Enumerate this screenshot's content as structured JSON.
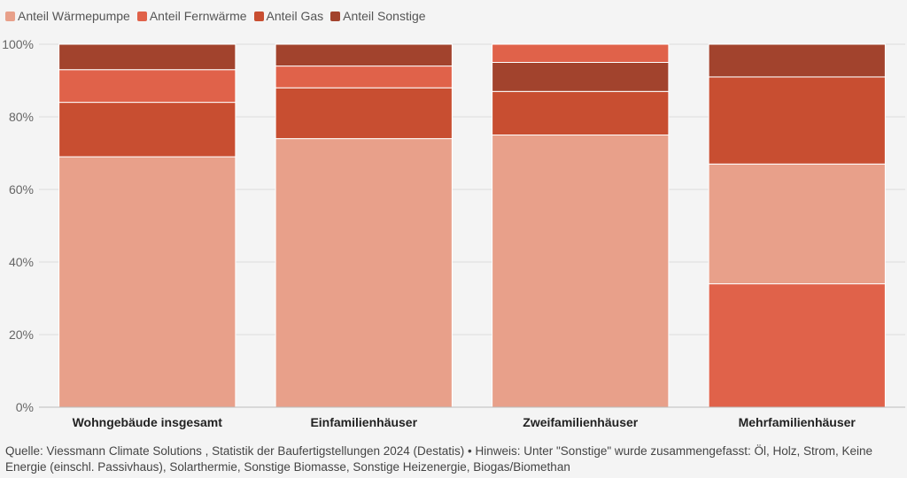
{
  "legend": [
    {
      "label": "Anteil Wärmepumpe",
      "color": "#e8a08a"
    },
    {
      "label": "Anteil Fernwärme",
      "color": "#e0624a"
    },
    {
      "label": "Anteil Gas",
      "color": "#c84e31"
    },
    {
      "label": "Anteil Sonstige",
      "color": "#a2432d"
    }
  ],
  "chart_data": {
    "type": "bar",
    "stacked": true,
    "categories": [
      "Wohngebäude insgesamt",
      "Einfamilienhäuser",
      "Zweifamilienhäuser",
      "Mehrfamilienhäuser"
    ],
    "series": [
      {
        "name": "Anteil Wärmepumpe",
        "color": "#e8a08a",
        "values": [
          69,
          74,
          75,
          33
        ]
      },
      {
        "name": "Anteil Fernwärme",
        "color": "#e0624a",
        "values": [
          9,
          6,
          5,
          34
        ]
      },
      {
        "name": "Anteil Gas",
        "color": "#c84e31",
        "values": [
          15,
          14,
          12,
          24
        ]
      },
      {
        "name": "Anteil Sonstige",
        "color": "#a2432d",
        "values": [
          7,
          6,
          8,
          9
        ]
      }
    ],
    "stack_order": [
      [
        "Anteil Wärmepumpe",
        "Anteil Gas",
        "Anteil Fernwärme",
        "Anteil Sonstige"
      ],
      [
        "Anteil Wärmepumpe",
        "Anteil Gas",
        "Anteil Fernwärme",
        "Anteil Sonstige"
      ],
      [
        "Anteil Wärmepumpe",
        "Anteil Gas",
        "Anteil Sonstige",
        "Anteil Fernwärme"
      ],
      [
        "Anteil Fernwärme",
        "Anteil Wärmepumpe",
        "Anteil Gas",
        "Anteil Sonstige"
      ]
    ],
    "yticks": [
      "0%",
      "20%",
      "40%",
      "60%",
      "80%",
      "100%"
    ],
    "ylim": [
      0,
      100
    ],
    "grid": true,
    "legend_position": "top-left"
  },
  "footer": {
    "source": "Quelle: Viessmann Climate Solutions , Statistik der Baufertigstellungen 2024 (Destatis) • Hinweis: Unter \"Sonstige\" wurde zusammengefasst: Öl, Holz, Strom, Keine Energie (einschl. Passivhaus), Solarthermie, Sonstige Biomasse, Sonstige Heizenergie, Biogas/Biomethan"
  }
}
